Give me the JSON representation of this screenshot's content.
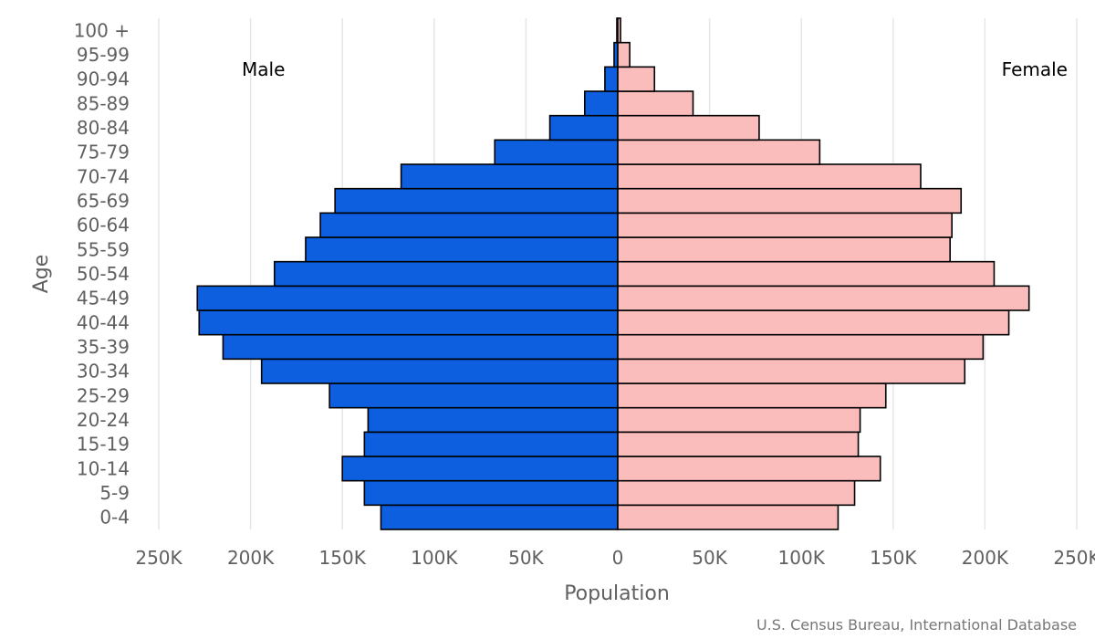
{
  "chart_data": {
    "type": "bar",
    "orientation": "horizontal",
    "subtype": "population-pyramid",
    "title": "",
    "xlabel": "Population",
    "ylabel": "Age",
    "xlim": [
      -250000,
      250000
    ],
    "grid": true,
    "categories": [
      "0-4",
      "5-9",
      "10-14",
      "15-19",
      "20-24",
      "25-29",
      "30-34",
      "35-39",
      "40-44",
      "45-49",
      "50-54",
      "55-59",
      "60-64",
      "65-69",
      "70-74",
      "75-79",
      "80-84",
      "85-89",
      "90-94",
      "95-99",
      "100 +"
    ],
    "series": [
      {
        "name": "Male",
        "color": "#0d5fe0",
        "values": [
          -129000,
          -138000,
          -150000,
          -138000,
          -136000,
          -157000,
          -194000,
          -215000,
          -228000,
          -229000,
          -187000,
          -170000,
          -162000,
          -154000,
          -118000,
          -67000,
          -37000,
          -18000,
          -7000,
          -2000,
          -500
        ]
      },
      {
        "name": "Female",
        "color": "#fbbcbc",
        "values": [
          120000,
          129000,
          143000,
          131000,
          132000,
          146000,
          189000,
          199000,
          213000,
          224000,
          205000,
          181000,
          182000,
          187000,
          165000,
          110000,
          77000,
          41000,
          20000,
          6500,
          1500
        ]
      }
    ],
    "x_ticks": [
      -250000,
      -200000,
      -150000,
      -100000,
      -50000,
      0,
      50000,
      100000,
      150000,
      200000,
      250000
    ],
    "x_tick_labels": [
      "250K",
      "200K",
      "150K",
      "100K",
      "50K",
      "0",
      "50K",
      "100K",
      "150K",
      "200K",
      "250K"
    ],
    "legend": {
      "male_label": "Male",
      "female_label": "Female"
    },
    "credit": "U.S. Census Bureau, International Database"
  }
}
